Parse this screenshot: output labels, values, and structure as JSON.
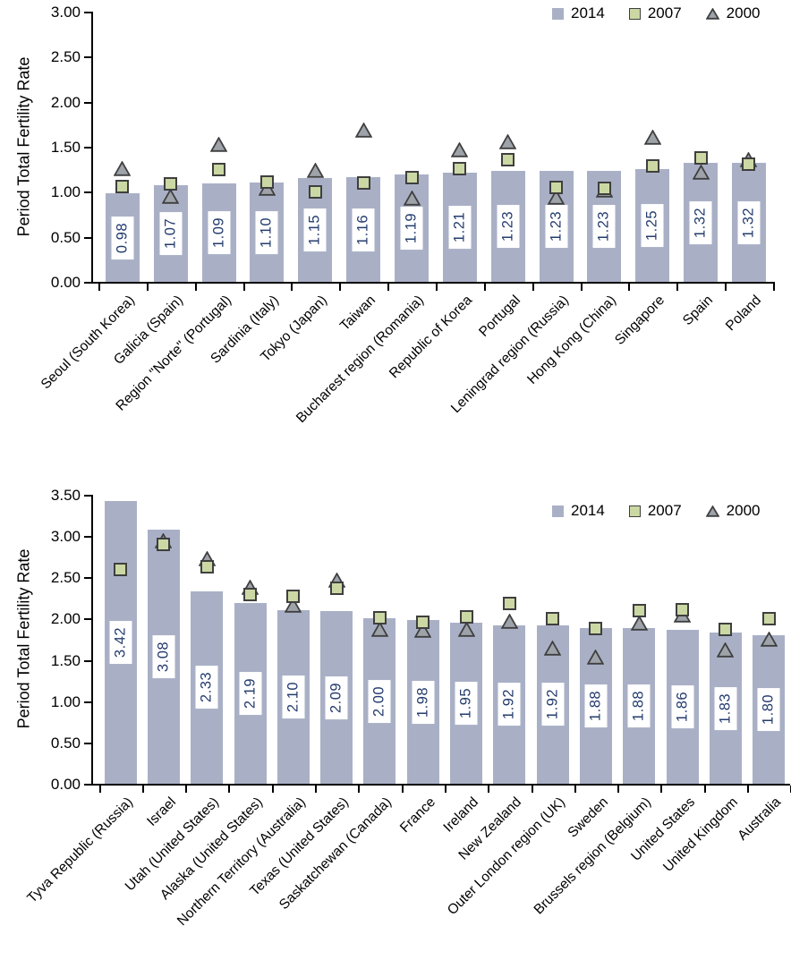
{
  "colors": {
    "bar_2014": "#a9b0c6",
    "square_2007_fill": "#cbd8a4",
    "triangle_2000_fill": "#9ea3aa",
    "marker_border": "#3f3f3f",
    "value_label_text": "#243c6e",
    "axis_text": "#000000",
    "background": "#ffffff"
  },
  "chart_data": [
    {
      "type": "bar",
      "title": "",
      "xlabel": "",
      "ylabel": "Period Total Fertility Rate",
      "ylim": [
        0,
        3.0
      ],
      "yticks": [
        "0.00",
        "0.50",
        "1.00",
        "1.50",
        "2.00",
        "2.50",
        "3.00"
      ],
      "grid": false,
      "legend_position": "top-right-inside",
      "legend": [
        "2014",
        "2007",
        "2000"
      ],
      "categories": [
        "Seoul (South Korea)",
        "Galicia (Spain)",
        "Region \"Norte\" (Portugal)",
        "Sardinia (Italy)",
        "Tokyo (Japan)",
        "Taiwan",
        "Bucharest region (Romania)",
        "Republic of Korea",
        "Portugal",
        "Leningrad region (Russia)",
        "Hong Kong (China)",
        "Singapore",
        "Spain",
        "Poland"
      ],
      "series": [
        {
          "name": "2014",
          "style": "bar",
          "values": [
            0.98,
            1.07,
            1.09,
            1.1,
            1.15,
            1.16,
            1.19,
            1.21,
            1.23,
            1.23,
            1.23,
            1.25,
            1.32,
            1.32
          ]
        },
        {
          "name": "2007",
          "style": "square-marker",
          "values": [
            1.06,
            1.09,
            1.25,
            1.11,
            1.0,
            1.1,
            1.16,
            1.26,
            1.36,
            1.05,
            1.04,
            1.29,
            1.38,
            1.31
          ]
        },
        {
          "name": "2000",
          "style": "triangle-marker",
          "values": [
            1.26,
            0.95,
            1.52,
            1.04,
            1.24,
            1.68,
            0.93,
            1.47,
            1.55,
            0.94,
            1.02,
            1.6,
            1.22,
            1.36
          ]
        }
      ],
      "bar_labels": [
        "0.98",
        "1.07",
        "1.09",
        "1.10",
        "1.15",
        "1.16",
        "1.19",
        "1.21",
        "1.23",
        "1.23",
        "1.23",
        "1.25",
        "1.32",
        "1.32"
      ]
    },
    {
      "type": "bar",
      "title": "",
      "xlabel": "",
      "ylabel": "Period Total Fertility Rate",
      "ylim": [
        0,
        3.5
      ],
      "yticks": [
        "0.00",
        "0.50",
        "1.00",
        "1.50",
        "2.00",
        "2.50",
        "3.00",
        "3.50"
      ],
      "grid": false,
      "legend_position": "top-right-inside",
      "legend": [
        "2014",
        "2007",
        "2000"
      ],
      "categories": [
        "Tyva Republic (Russia)",
        "Israel",
        "Utah (United States)",
        "Alaska (United States)",
        "Northern Territory (Australia)",
        "Texas (United States)",
        "Saskatchewan (Canada)",
        "France",
        "Ireland",
        "New Zealand",
        "Outer London region (UK)",
        "Sweden",
        "Brussels region (Belgium)",
        "United States",
        "United Kingdom",
        "Australia"
      ],
      "series": [
        {
          "name": "2014",
          "style": "bar",
          "values": [
            3.42,
            3.08,
            2.33,
            2.19,
            2.1,
            2.09,
            2.0,
            1.98,
            1.95,
            1.92,
            1.92,
            1.88,
            1.88,
            1.86,
            1.83,
            1.8
          ]
        },
        {
          "name": "2007",
          "style": "square-marker",
          "values": [
            2.6,
            2.9,
            2.63,
            2.29,
            2.27,
            2.37,
            2.01,
            1.96,
            2.02,
            2.18,
            2.0,
            1.88,
            2.1,
            2.11,
            1.87,
            2.0
          ]
        },
        {
          "name": "2000",
          "style": "triangle-marker",
          "values": [
            1.82,
            2.94,
            2.72,
            2.38,
            2.16,
            2.47,
            1.87,
            1.86,
            1.87,
            1.97,
            1.64,
            1.53,
            1.95,
            2.04,
            1.62,
            1.75
          ]
        }
      ],
      "bar_labels": [
        "3.42",
        "3.08",
        "2.33",
        "2.19",
        "2.10",
        "2.09",
        "2.00",
        "1.98",
        "1.95",
        "1.92",
        "1.92",
        "1.88",
        "1.88",
        "1.86",
        "1.83",
        "1.80"
      ]
    }
  ]
}
